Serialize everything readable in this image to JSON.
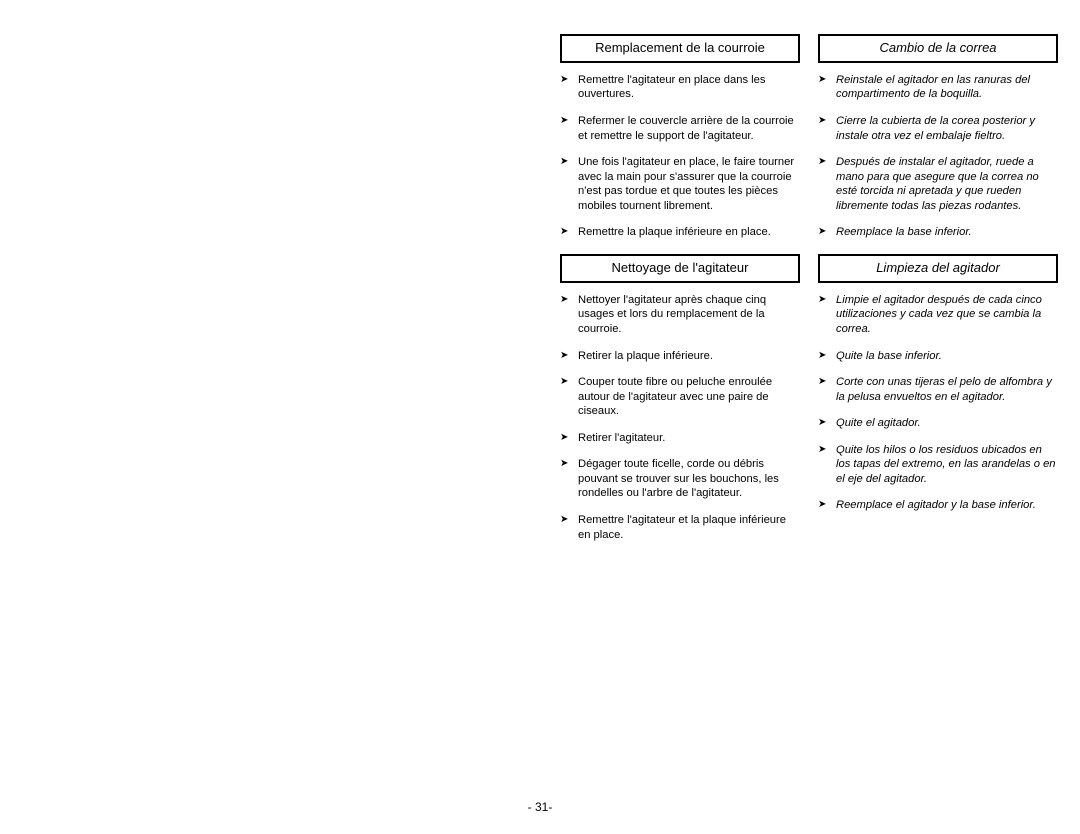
{
  "page_number": "- 31-",
  "fr": {
    "sections": [
      {
        "heading": "Remplacement de la courroie",
        "items": [
          "Remettre l'agitateur en place dans les ouvertures.",
          "Refermer le couvercle arrière de la courroie et remettre le support de l'agitateur.",
          "Une fois l'agitateur en place, le faire tourner avec la main pour s'assurer que la courroie n'est pas tordue et que toutes les pièces mobiles tournent librement.",
          "Remettre la plaque inférieure en place."
        ]
      },
      {
        "heading": "Nettoyage de l'agitateur",
        "items": [
          "Nettoyer l'agitateur après chaque cinq usages et lors du remplacement de la courroie.",
          "Retirer la plaque inférieure.",
          "Couper toute fibre ou peluche enroulée autour de l'agitateur avec une paire de ciseaux.",
          "Retirer l'agitateur.",
          "Dégager toute ficelle, corde ou débris pouvant se trouver sur les bouchons, les rondelles ou l'arbre de l'agitateur.",
          "Remettre l'agitateur et la plaque inférieure en place."
        ]
      }
    ]
  },
  "es": {
    "sections": [
      {
        "heading": "Cambio de la correa",
        "items": [
          "Reinstale el agitador en las ranuras del compartimento de la boquilla.",
          "Cierre la cubierta de la corea posterior y instale otra vez el embalaje fieltro.",
          "Después de instalar el agitador, ruede a mano para que asegure que la correa no esté torcida ni apretada y que rueden libremente todas las piezas rodantes.",
          "Reemplace la base inferior."
        ]
      },
      {
        "heading": "Limpieza del agitador",
        "items": [
          "Limpie el agitador después de cada cinco utilizaciones y cada vez que se cambia la correa.",
          "Quite la base inferior.",
          "Corte con unas tijeras el pelo de alfombra y la pelusa envueltos en el agitador.",
          "Quite el agitador.",
          "Quite los hilos o los residuos ubicados en los tapas del extremo, en las arandelas o en el eje del agitador.",
          "Reemplace el agitador y la base inferior."
        ]
      }
    ]
  }
}
